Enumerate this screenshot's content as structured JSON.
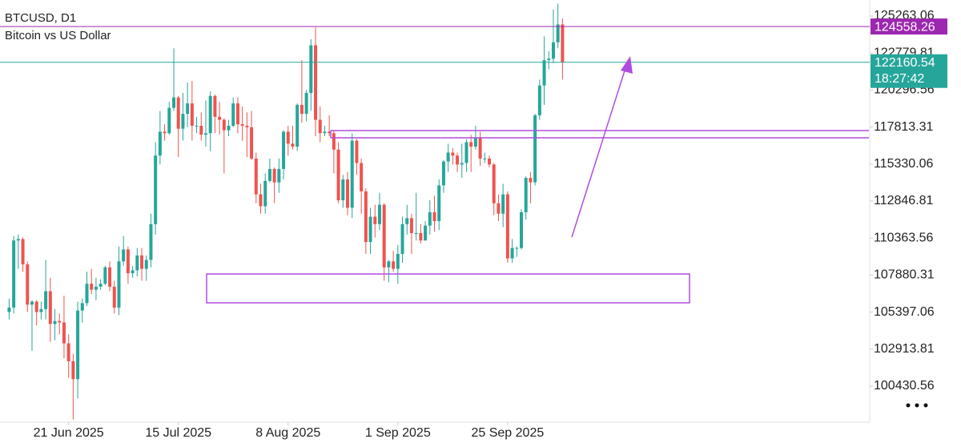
{
  "chart_data": {
    "type": "candlestick",
    "symbol": "BTCUSD, D1",
    "subtitle": "Bitcoin vs US Dollar",
    "up_color": "#26a69a",
    "down_color": "#ef5350",
    "xlim": [
      "2025-06-06",
      "2025-12-13"
    ],
    "xticks": [
      {
        "value": "2025-06-21",
        "label": "21 Jun 2025"
      },
      {
        "value": "2025-07-15",
        "label": "15 Jul 2025"
      },
      {
        "value": "2025-08-08",
        "label": "8 Aug 2025"
      },
      {
        "value": "2025-09-01",
        "label": "1 Sep 2025"
      },
      {
        "value": "2025-09-25",
        "label": "25 Sep 2025"
      }
    ],
    "ylim": [
      98119,
      126338
    ],
    "yticks": [
      125263.06,
      122779.81,
      120296.56,
      117813.31,
      115330.06,
      112846.81,
      110363.56,
      107880.31,
      105397.06,
      102913.81,
      100430.56
    ],
    "x": [
      "2025-06-08",
      "2025-06-09",
      "2025-06-10",
      "2025-06-11",
      "2025-06-12",
      "2025-06-13",
      "2025-06-14",
      "2025-06-15",
      "2025-06-16",
      "2025-06-17",
      "2025-06-18",
      "2025-06-19",
      "2025-06-20",
      "2025-06-21",
      "2025-06-22",
      "2025-06-23",
      "2025-06-24",
      "2025-06-25",
      "2025-06-26",
      "2025-06-27",
      "2025-06-28",
      "2025-06-29",
      "2025-06-30",
      "2025-07-01",
      "2025-07-02",
      "2025-07-03",
      "2025-07-04",
      "2025-07-05",
      "2025-07-06",
      "2025-07-07",
      "2025-07-08",
      "2025-07-09",
      "2025-07-10",
      "2025-07-11",
      "2025-07-12",
      "2025-07-13",
      "2025-07-14",
      "2025-07-15",
      "2025-07-16",
      "2025-07-17",
      "2025-07-18",
      "2025-07-19",
      "2025-07-20",
      "2025-07-21",
      "2025-07-22",
      "2025-07-23",
      "2025-07-24",
      "2025-07-25",
      "2025-07-26",
      "2025-07-27",
      "2025-07-28",
      "2025-07-29",
      "2025-07-30",
      "2025-07-31",
      "2025-08-01",
      "2025-08-02",
      "2025-08-03",
      "2025-08-04",
      "2025-08-05",
      "2025-08-06",
      "2025-08-07",
      "2025-08-08",
      "2025-08-09",
      "2025-08-10",
      "2025-08-11",
      "2025-08-12",
      "2025-08-13",
      "2025-08-14",
      "2025-08-15",
      "2025-08-16",
      "2025-08-17",
      "2025-08-18",
      "2025-08-19",
      "2025-08-20",
      "2025-08-21",
      "2025-08-22",
      "2025-08-23",
      "2025-08-24",
      "2025-08-25",
      "2025-08-26",
      "2025-08-27",
      "2025-08-28",
      "2025-08-29",
      "2025-08-30",
      "2025-08-31",
      "2025-09-01",
      "2025-09-02",
      "2025-09-03",
      "2025-09-04",
      "2025-09-05",
      "2025-09-06",
      "2025-09-07",
      "2025-09-08",
      "2025-09-09",
      "2025-09-10",
      "2025-09-11",
      "2025-09-12",
      "2025-09-13",
      "2025-09-14",
      "2025-09-15",
      "2025-09-16",
      "2025-09-17",
      "2025-09-18",
      "2025-09-19",
      "2025-09-20",
      "2025-09-21",
      "2025-09-22",
      "2025-09-23",
      "2025-09-24",
      "2025-09-25",
      "2025-09-26",
      "2025-09-27",
      "2025-09-28",
      "2025-09-29",
      "2025-09-30",
      "2025-10-01",
      "2025-10-02",
      "2025-10-03",
      "2025-10-04",
      "2025-10-05",
      "2025-10-06",
      "2025-10-07"
    ],
    "open": [
      105400,
      105700,
      110200,
      110300,
      108600,
      105900,
      106100,
      105400,
      105600,
      106800,
      104600,
      104800,
      104700,
      103300,
      102100,
      100900,
      105500,
      106000,
      107300,
      106900,
      107100,
      107300,
      108400,
      107100,
      105700,
      108800,
      109600,
      108000,
      108200,
      109200,
      108300,
      108900,
      111300,
      115900,
      117500,
      117400,
      119100,
      119800,
      117700,
      118700,
      119400,
      117900,
      117900,
      117300,
      117400,
      119900,
      118500,
      118300,
      117600,
      117900,
      119400,
      118000,
      117900,
      117800,
      115700,
      113300,
      112500,
      114200,
      115000,
      114100,
      115000,
      117500,
      116700,
      116500,
      119300,
      118700,
      120100,
      123300,
      118300,
      117400,
      117500,
      117400,
      116300,
      112900,
      114300,
      112400,
      116900,
      115400,
      113500,
      110100,
      111800,
      111300,
      112600,
      108400,
      108800,
      108300,
      109300,
      111300,
      111700,
      110700,
      110700,
      110200,
      111200,
      112100,
      111500,
      113900,
      115500,
      116100,
      115900,
      115300,
      115400,
      116800,
      116500,
      117100,
      115700,
      115700,
      115300,
      112700,
      112000,
      113300,
      109000,
      109700,
      109700,
      112100,
      114400,
      114100,
      118600,
      120600,
      122300,
      122400,
      123500,
      124700
    ],
    "close": [
      105700,
      110200,
      110300,
      108600,
      105900,
      106100,
      105400,
      105600,
      106800,
      104600,
      104800,
      104700,
      103300,
      102100,
      100900,
      105500,
      106000,
      107300,
      106900,
      107100,
      107300,
      108400,
      107100,
      105700,
      108800,
      109600,
      108000,
      108200,
      109200,
      108300,
      108900,
      111300,
      115900,
      117500,
      117400,
      119100,
      119800,
      117700,
      118700,
      119400,
      117900,
      117900,
      117300,
      117400,
      119900,
      118500,
      118300,
      117600,
      117900,
      119400,
      118000,
      117900,
      117800,
      115700,
      113300,
      112500,
      114200,
      115000,
      114100,
      115000,
      117500,
      116700,
      116500,
      119300,
      118700,
      120100,
      123300,
      118300,
      117400,
      117500,
      117400,
      116300,
      112900,
      114300,
      112400,
      116900,
      115400,
      113500,
      110100,
      111800,
      111300,
      112600,
      108400,
      108800,
      108300,
      109300,
      111300,
      111700,
      110700,
      110700,
      110200,
      111200,
      112100,
      111500,
      113900,
      115500,
      116100,
      115900,
      115300,
      115400,
      116800,
      116500,
      117100,
      115700,
      115700,
      115300,
      112700,
      112000,
      113300,
      109000,
      109700,
      109700,
      112100,
      114400,
      114100,
      118600,
      120600,
      122300,
      122400,
      123500,
      124700,
      122160.54
    ],
    "high": [
      106300,
      110500,
      110600,
      110400,
      108800,
      106200,
      106200,
      106100,
      108900,
      107700,
      105600,
      105300,
      106500,
      103900,
      102600,
      106100,
      106300,
      108100,
      108300,
      107700,
      107600,
      108500,
      108800,
      107500,
      109800,
      110500,
      109800,
      108500,
      109700,
      109700,
      109200,
      112000,
      116800,
      118900,
      118000,
      119500,
      123100,
      119900,
      120100,
      120800,
      120900,
      118500,
      118800,
      119600,
      120200,
      120000,
      119500,
      118400,
      118300,
      119800,
      119800,
      119200,
      118800,
      118900,
      116100,
      114000,
      114700,
      115700,
      115100,
      115700,
      117600,
      117900,
      117900,
      119400,
      122300,
      120300,
      123700,
      124500,
      119200,
      117900,
      118600,
      117600,
      116800,
      114600,
      114800,
      117400,
      117000,
      115700,
      113700,
      112400,
      112600,
      113400,
      112700,
      108900,
      109500,
      109900,
      111800,
      112600,
      112000,
      113400,
      111300,
      111500,
      112900,
      113200,
      114300,
      115600,
      116700,
      116400,
      116100,
      116700,
      117000,
      117300,
      117900,
      117500,
      116100,
      115900,
      115400,
      113300,
      114000,
      113500,
      110300,
      109800,
      112300,
      114500,
      114800,
      118700,
      121000,
      123900,
      122900,
      125700,
      126100,
      125100
    ],
    "low": [
      104900,
      105300,
      108300,
      108100,
      105400,
      102800,
      104500,
      104900,
      104900,
      103400,
      103500,
      103900,
      102300,
      101000,
      98200,
      99600,
      104700,
      105800,
      106600,
      106200,
      106900,
      107200,
      106800,
      105300,
      105200,
      108500,
      107300,
      107700,
      107800,
      107500,
      107500,
      108400,
      110600,
      115300,
      116900,
      117300,
      118900,
      115800,
      116900,
      117800,
      116900,
      117400,
      116900,
      116500,
      116200,
      117400,
      117300,
      114700,
      117200,
      117800,
      117400,
      116900,
      115800,
      115600,
      112700,
      112000,
      112000,
      114100,
      112700,
      113400,
      114300,
      115900,
      116300,
      116200,
      118100,
      118200,
      118900,
      117200,
      116800,
      117200,
      117200,
      114700,
      112700,
      112400,
      111900,
      111700,
      114600,
      112000,
      109300,
      109300,
      110400,
      110900,
      107500,
      107400,
      108100,
      107300,
      108700,
      110600,
      109300,
      110200,
      110000,
      110200,
      110600,
      110800,
      110900,
      113400,
      114800,
      115300,
      114800,
      114400,
      114800,
      114800,
      116300,
      115200,
      115400,
      115100,
      111900,
      111500,
      111100,
      108700,
      108700,
      109100,
      109600,
      111600,
      112700,
      113900,
      118300,
      119300,
      121700,
      122100,
      123100,
      121000
    ],
    "level_line": {
      "value": 124558.26,
      "color": "#9c27b0"
    },
    "last_price": {
      "value": 122160.54,
      "countdown": "18:27:42",
      "color": "#26a69a"
    }
  }
}
